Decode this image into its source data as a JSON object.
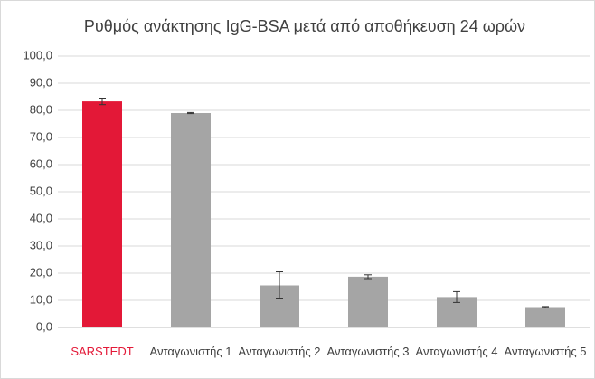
{
  "chart_data": {
    "type": "bar",
    "title": "Ρυθμός ανάκτησης IgG-BSA μετά από αποθήκευση 24 ωρών",
    "categories": [
      "SARSTEDT",
      "Ανταγωνιστής 1",
      "Ανταγωνιστής 2",
      "Ανταγωνιστής 3",
      "Ανταγωνιστής 4",
      "Ανταγωνιστής 5"
    ],
    "values": [
      83.3,
      79.0,
      15.5,
      18.7,
      11.2,
      7.5
    ],
    "errors": [
      1.2,
      0.2,
      5.0,
      0.7,
      2.0,
      0.2
    ],
    "colors": [
      "#e31837",
      "#a5a5a5",
      "#a5a5a5",
      "#a5a5a5",
      "#a5a5a5",
      "#a5a5a5"
    ],
    "ylim": [
      0,
      100
    ],
    "yticks": [
      {
        "value": 0,
        "label": "0,0"
      },
      {
        "value": 10,
        "label": "10,0"
      },
      {
        "value": 20,
        "label": "20,0"
      },
      {
        "value": 30,
        "label": "30,0"
      },
      {
        "value": 40,
        "label": "40,0"
      },
      {
        "value": 50,
        "label": "50,0"
      },
      {
        "value": 60,
        "label": "60,0"
      },
      {
        "value": 70,
        "label": "70,0"
      },
      {
        "value": 80,
        "label": "80,0"
      },
      {
        "value": 90,
        "label": "90,0"
      },
      {
        "value": 100,
        "label": "100,0"
      }
    ],
    "grid": true
  }
}
